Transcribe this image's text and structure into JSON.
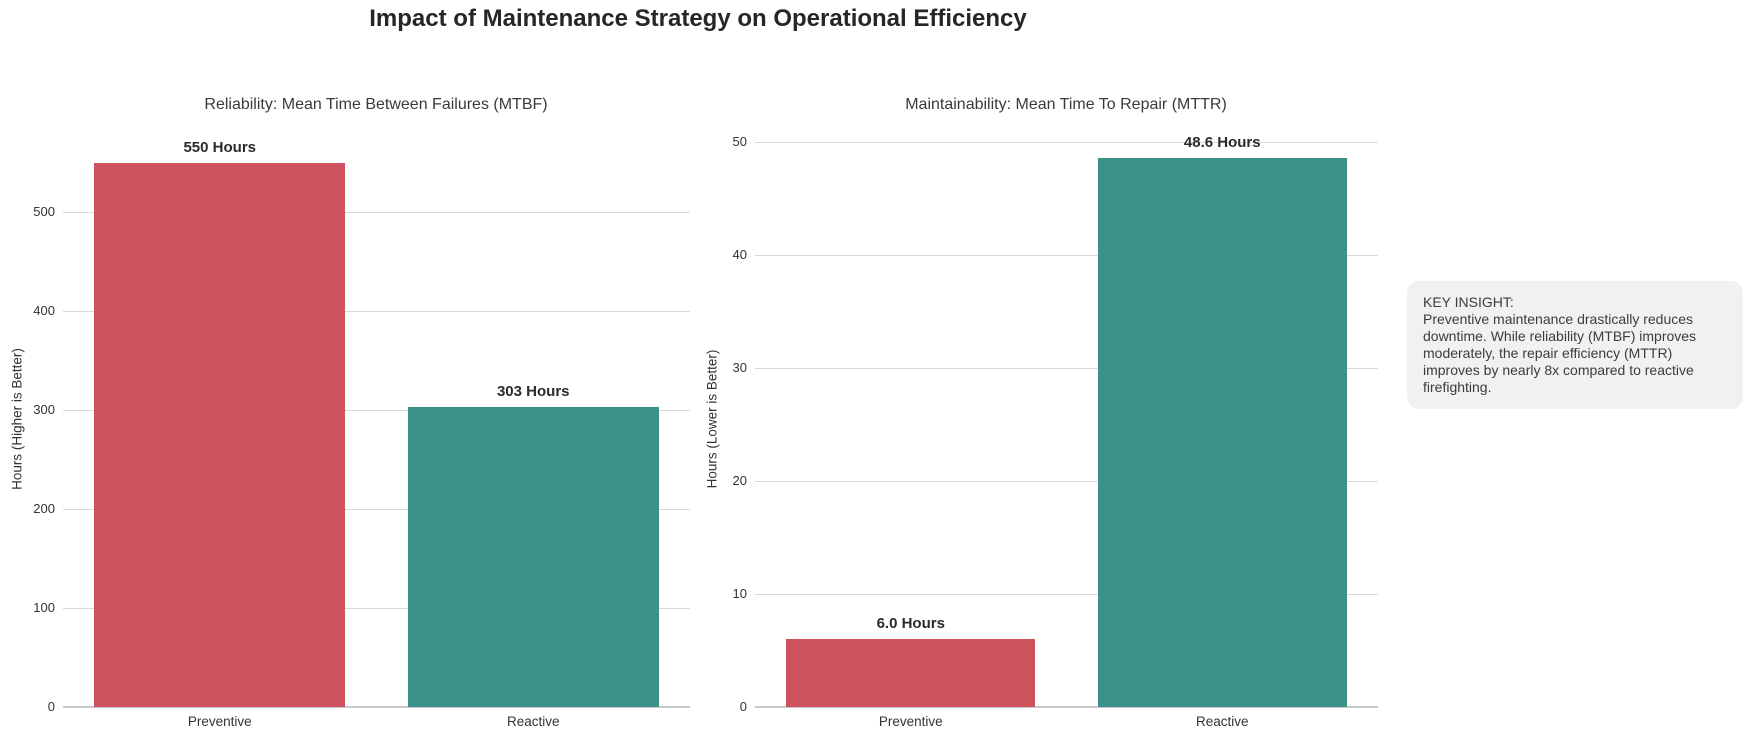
{
  "title": "Impact of Maintenance Strategy on Operational Efficiency",
  "insight": {
    "heading": "KEY INSIGHT:",
    "body": "Preventive maintenance drastically reduces downtime. While reliability (MTBF) improves moderately, the repair efficiency (MTTR) improves by nearly 8x compared to reactive firefighting."
  },
  "colors": {
    "preventive_bar": "#cd525e",
    "reactive_bar": "#399187",
    "gridline": "#d9d9d9",
    "axis_line": "#c9c9c9"
  },
  "chart_data": [
    {
      "type": "bar",
      "title": "Reliability: Mean Time Between Failures (MTBF)",
      "ylabel": "Hours (Higher is Better)",
      "xlabel": "",
      "categories": [
        "Preventive",
        "Reactive"
      ],
      "values": [
        550,
        303
      ],
      "bar_labels": [
        "550 Hours",
        "303 Hours"
      ],
      "bar_colors": [
        "#cd525e",
        "#399187"
      ],
      "yticks": [
        0,
        100,
        200,
        300,
        400,
        500
      ],
      "ylim": [
        0,
        582
      ],
      "grid": true,
      "legend": false
    },
    {
      "type": "bar",
      "title": "Maintainability: Mean Time To Repair (MTTR)",
      "ylabel": "Hours (Lower is Better)",
      "xlabel": "",
      "categories": [
        "Preventive",
        "Reactive"
      ],
      "values": [
        6.0,
        48.6
      ],
      "bar_labels": [
        "6.0 Hours",
        "48.6 Hours"
      ],
      "bar_colors": [
        "#cd525e",
        "#399187"
      ],
      "yticks": [
        0,
        10,
        20,
        30,
        40,
        50
      ],
      "ylim": [
        0,
        51
      ],
      "grid": true,
      "legend": false
    }
  ]
}
